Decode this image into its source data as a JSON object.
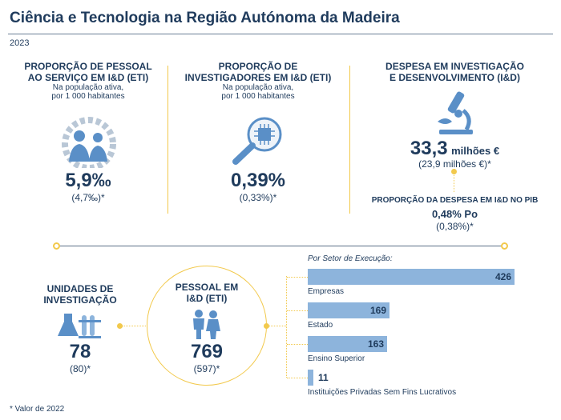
{
  "title": "Ciência e Tecnologia na Região Autónoma da Madeira",
  "year": "2023",
  "col1": {
    "heading_l1": "PROPORÇÃO DE PESSOAL",
    "heading_l2": "AO SERVIÇO EM I&D (ETI)",
    "sub_l1": "Na população ativa,",
    "sub_l2": "por 1 000 habitantes",
    "value": "5,9‰",
    "previous": "(4,7‰)*",
    "icon": "people-gear-icon"
  },
  "col2": {
    "heading_l1": "PROPORÇÃO DE",
    "heading_l2": "INVESTIGADORES EM I&D (ETI)",
    "sub_l1": "Na população ativa,",
    "sub_l2": "por 1 000 habitantes",
    "value": "0,39%",
    "previous": "(0,33%)*",
    "icon": "magnifier-chip-icon"
  },
  "col3": {
    "heading_l1": "DESPESA EM INVESTIGAÇÃO",
    "heading_l2": "E DESENVOLVIMENTO (I&D)",
    "value": "33,3",
    "unit": "milhões €",
    "previous": "(23,9 milhões €)*",
    "icon": "microscope-icon",
    "gdp_heading": "PROPORÇÃO DA DESPESA EM I&D NO PIB",
    "gdp_value": "0,48% Po",
    "gdp_previous": "(0,38%)*"
  },
  "units": {
    "heading_l1": "UNIDADES DE",
    "heading_l2": "INVESTIGAÇÃO",
    "value": "78",
    "previous": "(80)*",
    "icon": "lab-flask-icon"
  },
  "staff": {
    "heading_l1": "PESSOAL EM",
    "heading_l2": "I&D (ETI)",
    "value": "769",
    "previous": "(597)*",
    "icon": "people-icon"
  },
  "sector_title": "Por Setor de Execução:",
  "chart_data": {
    "type": "bar",
    "orientation": "horizontal",
    "categories": [
      "Empresas",
      "Estado",
      "Ensino Superior",
      "Instituições Privadas Sem Fins Lucrativos"
    ],
    "values": [
      426,
      169,
      163,
      11
    ],
    "values_text": [
      "426",
      "169",
      "163",
      "11"
    ],
    "title": "Por Setor de Execução:",
    "colors": {
      "bar": "#8db4dc"
    }
  },
  "footnote": "* Valor de 2022",
  "colors": {
    "navy": "#1f3b5c",
    "accent": "#f2c94c",
    "icon_blue": "#5a8fc7",
    "bar": "#8db4dc"
  }
}
